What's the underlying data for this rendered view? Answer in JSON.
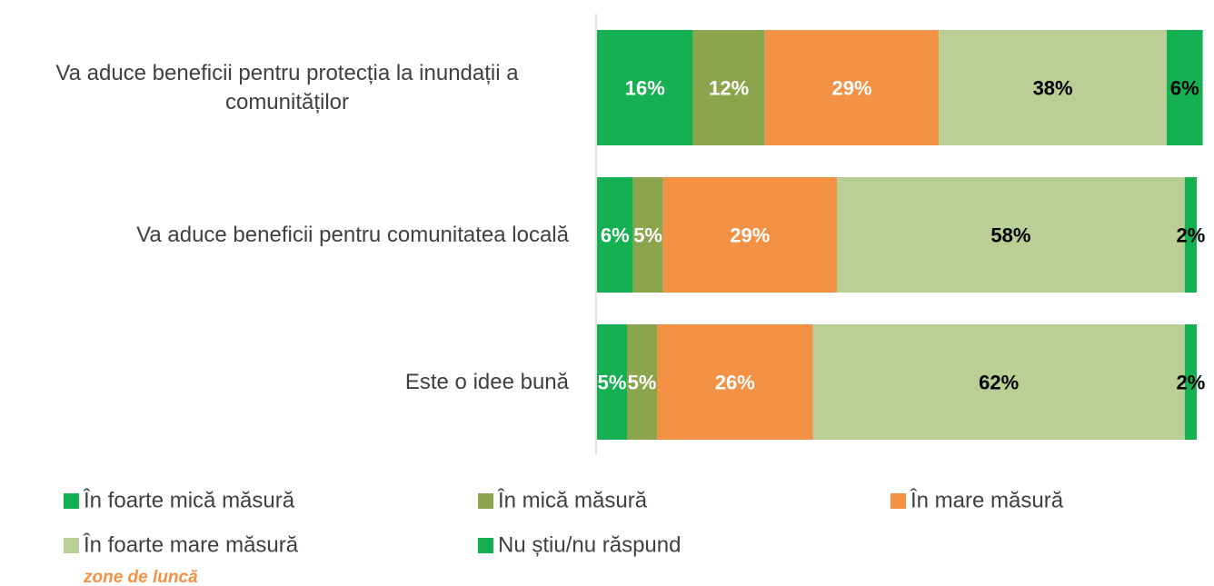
{
  "chart_data": {
    "type": "stacked-bar-horizontal",
    "categories": [
      "Va aduce beneficii pentru protecția la inundații a comunităților",
      "Va aduce beneficii pentru comunitatea locală",
      "Este o idee bună"
    ],
    "series": [
      {
        "name": "În foarte mică măsură",
        "color": "#15b052",
        "label_color": "#ffffff",
        "values": [
          16,
          6,
          5
        ],
        "value_labels": [
          "16%",
          "6%",
          "5%"
        ]
      },
      {
        "name": "În mică măsură",
        "color": "#8ba54c",
        "label_color": "#ffffff",
        "values": [
          12,
          5,
          5
        ],
        "value_labels": [
          "12%",
          "5%",
          "5%"
        ]
      },
      {
        "name": "În mare măsură",
        "color": "#f39144",
        "label_color": "#ffffff",
        "values": [
          29,
          29,
          26
        ],
        "value_labels": [
          "29%",
          "29%",
          "26%"
        ]
      },
      {
        "name": "În foarte mare măsură",
        "color": "#b9cf96",
        "label_color": "#000000",
        "values": [
          38,
          58,
          62
        ],
        "value_labels": [
          "38%",
          "58%",
          "62%"
        ]
      },
      {
        "name": "Nu știu/nu răspund",
        "color": "#15b052",
        "label_color": "#000000",
        "values": [
          6,
          2,
          2
        ],
        "value_labels": [
          "6%",
          "2%",
          "2%"
        ]
      }
    ],
    "annotation": "zone de luncă"
  }
}
